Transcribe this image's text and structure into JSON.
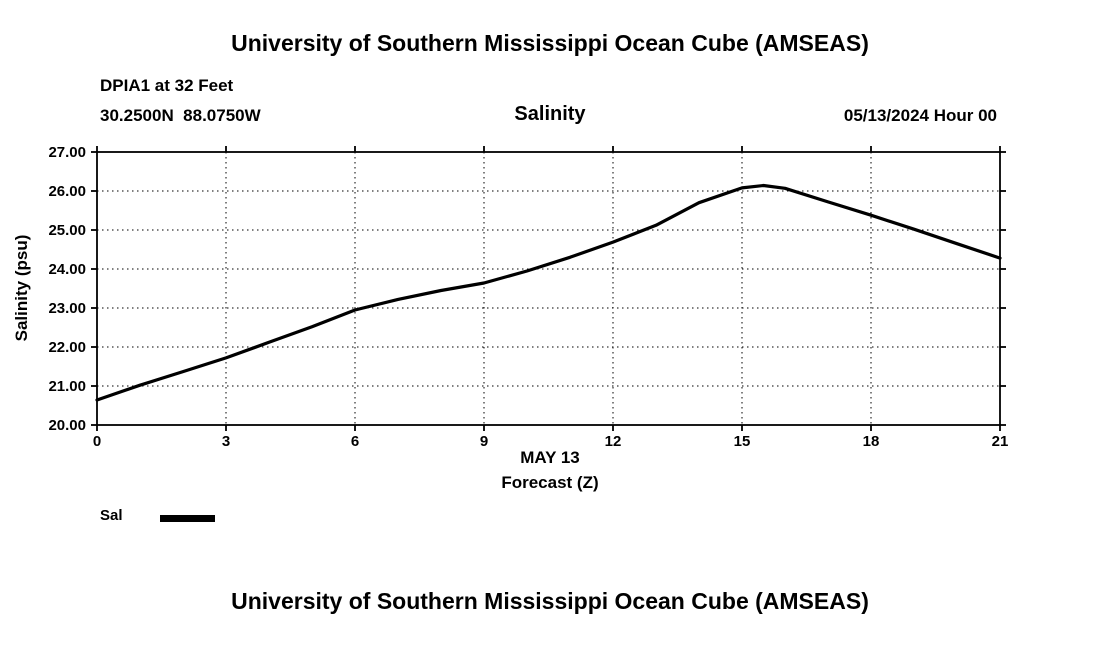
{
  "page": {
    "top_title": "University of Southern Mississippi Ocean Cube (AMSEAS)",
    "bottom_title": "University of Southern Mississippi Ocean Cube (AMSEAS)"
  },
  "header": {
    "station": "DPIA1 at 32 Feet",
    "coordinates": "30.2500N  88.0750W",
    "plot_title": "Salinity",
    "datetime": "05/13/2024 Hour 00"
  },
  "legend": {
    "label": "Sal"
  },
  "chart_data": {
    "type": "line",
    "title": "Salinity",
    "xlabel_line1": "MAY 13",
    "xlabel_line2": "Forecast (Z)",
    "ylabel": "Salinity (psu)",
    "xlim": [
      0,
      21
    ],
    "ylim": [
      20,
      27
    ],
    "xticks": [
      0,
      3,
      6,
      9,
      12,
      15,
      18,
      21
    ],
    "xtick_labels": [
      "0",
      "3",
      "6",
      "9",
      "12",
      "15",
      "18",
      "21"
    ],
    "yticks": [
      20,
      21,
      22,
      23,
      24,
      25,
      26,
      27
    ],
    "ytick_labels": [
      "20.00",
      "21.00",
      "22.00",
      "23.00",
      "24.00",
      "25.00",
      "26.00",
      "27.00"
    ],
    "grid": "dotted",
    "legend_position": "below-left",
    "series": [
      {
        "name": "Sal",
        "color": "#000000",
        "width": 3.2,
        "x": [
          0,
          1,
          2,
          3,
          4,
          5,
          6,
          7,
          8,
          9,
          10,
          11,
          12,
          13,
          14,
          15,
          15.5,
          16,
          17,
          18,
          19,
          20,
          21
        ],
        "y": [
          20.64,
          21.02,
          21.37,
          21.72,
          22.12,
          22.52,
          22.95,
          23.22,
          23.45,
          23.64,
          23.95,
          24.3,
          24.69,
          25.12,
          25.7,
          26.08,
          26.14,
          26.07,
          25.72,
          25.38,
          25.02,
          24.65,
          24.28
        ]
      }
    ]
  }
}
